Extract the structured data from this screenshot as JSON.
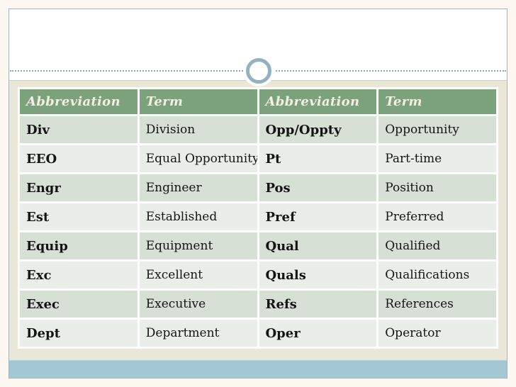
{
  "slide": {
    "title_placeholder": "",
    "colors": {
      "page_background": "#fcf7f1",
      "frame_border": "#a2b5b6",
      "divider_dots": "#8ba7bd",
      "circle_ring": "#93b1c0",
      "body_background": "#e9e7d8",
      "accent_bar": "#a4c8d3"
    }
  },
  "table": {
    "colors": {
      "header_background": "#7ba27a",
      "header_text": "#f2f0e1",
      "row_odd": "#d7e0d4",
      "row_even": "#eaeee8"
    },
    "headers": [
      "Abbreviation",
      "Term",
      "Abbreviation",
      "Term"
    ],
    "rows": [
      [
        "Div",
        "Division",
        "Opp/Oppty",
        "Opportunity"
      ],
      [
        "EEO",
        "Equal Opportunity",
        "Pt",
        "Part-time"
      ],
      [
        "Engr",
        "Engineer",
        "Pos",
        "Position"
      ],
      [
        "Est",
        "Established",
        "Pref",
        "Preferred"
      ],
      [
        "Equip",
        "Equipment",
        "Qual",
        "Qualified"
      ],
      [
        "Exc",
        "Excellent",
        "Quals",
        "Qualifications"
      ],
      [
        "Exec",
        "Executive",
        "Refs",
        "References"
      ],
      [
        "Dept",
        "Department",
        "Oper",
        "Operator"
      ]
    ]
  }
}
